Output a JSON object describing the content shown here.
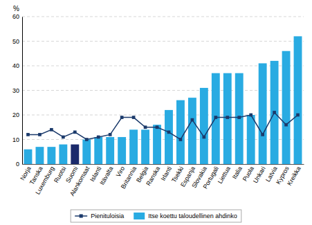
{
  "chart_data": {
    "type": "bar",
    "categories": [
      "Norja",
      "Tanska",
      "Luxemburg",
      "Ruotsi",
      "Suomi",
      "Alankomaat",
      "Islanti",
      "Itävalta",
      "Viro",
      "Britannia",
      "Belgia",
      "Ranska",
      "Irlanti",
      "Tsekki",
      "Espanja",
      "Slovakia",
      "Portugali",
      "Liettua",
      "Italia",
      "Puola",
      "Unkari",
      "Latvia",
      "Kypros",
      "Kreikka"
    ],
    "series": [
      {
        "name": "Pienituloisia",
        "type": "line",
        "color": "#1b3a6b",
        "marker": "square",
        "values": [
          12,
          12,
          14,
          11,
          13,
          10,
          11,
          12,
          19,
          19,
          15,
          15,
          13,
          10,
          18,
          11,
          19,
          19,
          19,
          20,
          12,
          21,
          16,
          20
        ]
      },
      {
        "name": "Itse koettu taloudellinen ahdinko",
        "type": "bar",
        "color": "#29abe2",
        "colors": [
          "#29abe2",
          "#29abe2",
          "#29abe2",
          "#29abe2",
          "#1b2a6b",
          "#29abe2",
          "#29abe2",
          "#29abe2",
          "#29abe2",
          "#29abe2",
          "#29abe2",
          "#29abe2",
          "#29abe2",
          "#29abe2",
          "#29abe2",
          "#29abe2",
          "#29abe2",
          "#29abe2",
          "#29abe2",
          "#29abe2",
          "#29abe2",
          "#29abe2",
          "#29abe2",
          "#29abe2"
        ],
        "values": [
          6,
          7,
          7,
          8,
          8,
          10,
          11,
          11,
          11,
          14,
          14,
          16,
          22,
          26,
          27,
          31,
          37,
          37,
          37,
          20,
          41,
          42,
          46,
          52
        ]
      }
    ],
    "ylabel": "%",
    "ylim": [
      0,
      60
    ],
    "yticks": [
      0,
      10,
      20,
      30,
      40,
      50,
      60
    ],
    "grid": true,
    "legend": "bottom"
  }
}
